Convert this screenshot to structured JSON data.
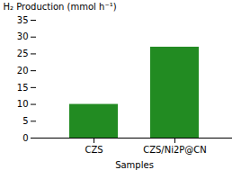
{
  "chart_data": {
    "type": "bar",
    "categories": [
      "CZS",
      "CZS/Ni2P@CN"
    ],
    "values": [
      10,
      27
    ],
    "color": "#228B22",
    "xlabel": "Samples",
    "ylabel": "H₂ Production (mmol h⁻¹)",
    "ylim": [
      0,
      35
    ],
    "yticks": [
      0,
      5,
      10,
      15,
      20,
      25,
      30,
      35
    ],
    "grid": false
  }
}
